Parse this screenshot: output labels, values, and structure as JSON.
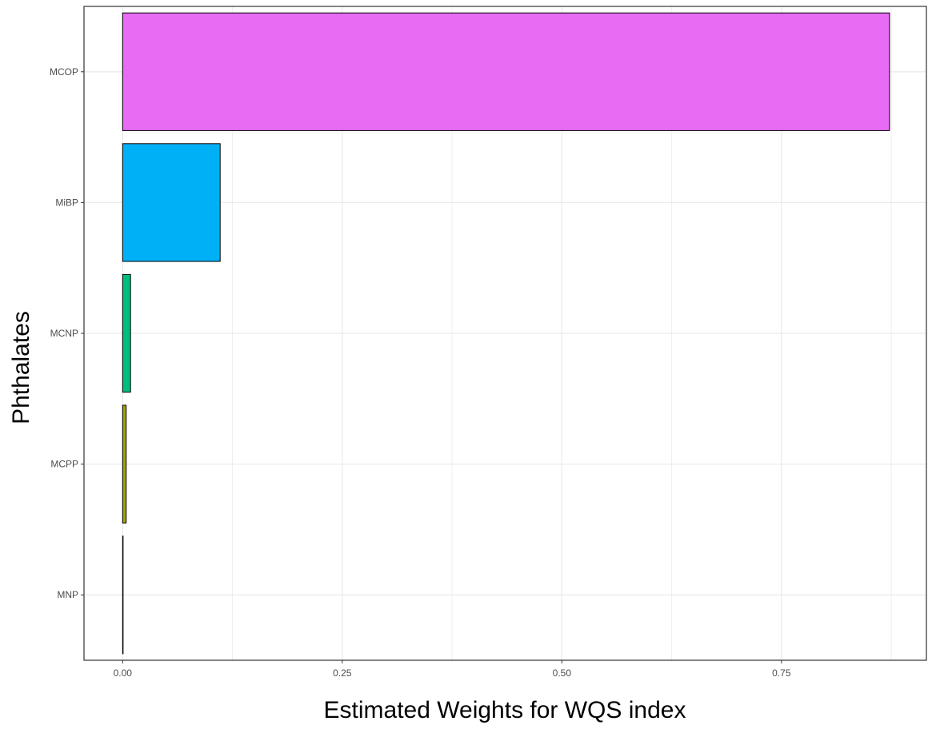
{
  "chart_data": {
    "type": "bar",
    "orientation": "horizontal",
    "title": "",
    "xlabel": "Estimated Weights for WQS index",
    "ylabel": "Phthalates",
    "categories": [
      "MCOP",
      "MiBP",
      "MCNP",
      "MCPP",
      "MNP"
    ],
    "values": [
      0.873,
      0.111,
      0.009,
      0.004,
      0.0005
    ],
    "colors": [
      "#E76BF3",
      "#00B0F6",
      "#00BF7D",
      "#A3A500",
      "#F8766D"
    ],
    "xlim": [
      -0.044,
      0.915
    ],
    "xticks": [
      0.0,
      0.25,
      0.5,
      0.75
    ],
    "xtick_labels": [
      "0.00",
      "0.25",
      "0.50",
      "0.75"
    ],
    "grid": true,
    "legend": "none"
  }
}
